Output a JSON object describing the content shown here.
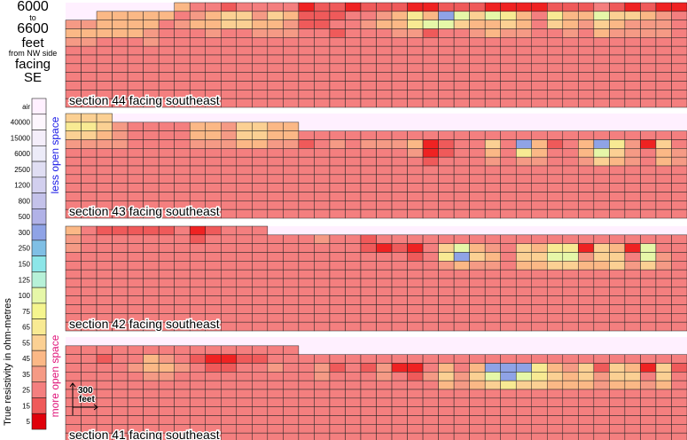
{
  "title": {
    "line1": "6000",
    "line2": "to",
    "line3": "6600",
    "line4": "feet",
    "line5": "from NW side",
    "line6": "facing",
    "line7": "SE"
  },
  "legend": {
    "axis_title": "True resistivity in ohm-metres",
    "less_label": "less open space",
    "more_label": "more open space",
    "entries": [
      {
        "label": "air",
        "color": "#fff0ff"
      },
      {
        "label": "40000",
        "color": "#fdf6fd"
      },
      {
        "label": "15000",
        "color": "#f4eefa"
      },
      {
        "label": "6000",
        "color": "#ecebf8"
      },
      {
        "label": "2500",
        "color": "#e0def3"
      },
      {
        "label": "1200",
        "color": "#d2cfee"
      },
      {
        "label": "800",
        "color": "#c4c2ea"
      },
      {
        "label": "500",
        "color": "#b1b2e7"
      },
      {
        "label": "300",
        "color": "#8fa3e6"
      },
      {
        "label": "250",
        "color": "#7fbfe5"
      },
      {
        "label": "150",
        "color": "#8ce6e8"
      },
      {
        "label": "125",
        "color": "#b7f1d8"
      },
      {
        "label": "100",
        "color": "#e6f7a8"
      },
      {
        "label": "75",
        "color": "#f5f58e"
      },
      {
        "label": "65",
        "color": "#f8ea93"
      },
      {
        "label": "55",
        "color": "#fbd093"
      },
      {
        "label": "45",
        "color": "#fbb886"
      },
      {
        "label": "35",
        "color": "#f59a85"
      },
      {
        "label": "25",
        "color": "#f47f7f"
      },
      {
        "label": "15",
        "color": "#ef5a5a"
      },
      {
        "label": "5",
        "color": "#e0000a"
      }
    ]
  },
  "colors": {
    "background": "#fff0ff",
    "grid_line": "#222222",
    "text": "#000000",
    "less_label": "#1a1ae6",
    "more_label": "#e0147a"
  },
  "scale_bar": {
    "label_top": "300",
    "label_bottom": "feet"
  },
  "chart_data": {
    "type": "heatmap",
    "legend_placement": "left",
    "grid": true,
    "sections": [
      {
        "label": "section 44 facing southeast",
        "surface_depth": [
          2,
          2,
          1,
          1,
          1,
          1,
          1,
          0,
          0,
          0,
          0,
          0,
          0,
          0,
          0,
          0,
          0,
          0,
          0,
          0,
          0,
          0,
          0,
          0,
          0,
          0,
          0,
          0,
          0,
          0,
          0,
          0,
          0,
          0,
          0,
          0,
          0,
          0,
          0,
          0
        ],
        "top_levels": [
          [
            4,
            4,
            5,
            5,
            5,
            5,
            5,
            5,
            3,
            3,
            2,
            3,
            3,
            3,
            3,
            1,
            2,
            2,
            1,
            2,
            2,
            2,
            1,
            1,
            2,
            2,
            2,
            1,
            1,
            1,
            1,
            2,
            2,
            2,
            3,
            2,
            1,
            2,
            1,
            1
          ],
          [
            5,
            5,
            5,
            5,
            5,
            5,
            3,
            3,
            4,
            5,
            6,
            6,
            4,
            6,
            5,
            2,
            2,
            2,
            3,
            3,
            4,
            5,
            7,
            5,
            9,
            8,
            6,
            8,
            7,
            5,
            3,
            7,
            5,
            5,
            8,
            6,
            6,
            5,
            4,
            3
          ],
          [
            4,
            4,
            5,
            5,
            5,
            4,
            3,
            4,
            5,
            5,
            6,
            6,
            5,
            5,
            4,
            2,
            2,
            3,
            3,
            4,
            5,
            5,
            7,
            8,
            8,
            6,
            5,
            5,
            6,
            5,
            3,
            6,
            5,
            4,
            6,
            5,
            4,
            4,
            4,
            3
          ],
          [
            3,
            3,
            3,
            3,
            3,
            4,
            3,
            3,
            3,
            4,
            3,
            3,
            4,
            4,
            4,
            3,
            3,
            2,
            3,
            3,
            3,
            4,
            4,
            2,
            3,
            3,
            4,
            5,
            4,
            4,
            3,
            3,
            4,
            3,
            5,
            4,
            4,
            4,
            4,
            3
          ]
        ]
      },
      {
        "label": "section 43 facing southeast",
        "surface_depth": [
          0,
          0,
          0,
          1,
          1,
          1,
          1,
          1,
          1,
          1,
          1,
          1,
          1,
          1,
          1,
          2,
          2,
          2,
          2,
          2,
          2,
          2,
          2,
          2,
          2,
          2,
          2,
          2,
          2,
          2,
          2,
          2,
          2,
          2,
          2,
          2,
          2,
          2,
          2,
          2
        ],
        "top_levels": [
          [
            6,
            6,
            6,
            4,
            3,
            3,
            3,
            3,
            5,
            5,
            4,
            6,
            6,
            5,
            5,
            3,
            3,
            3,
            3,
            3,
            3,
            3,
            3,
            3,
            3,
            3,
            3,
            3,
            3,
            3,
            3,
            3,
            3,
            3,
            3,
            3,
            3,
            3,
            3,
            3
          ],
          [
            7,
            7,
            6,
            4,
            3,
            3,
            3,
            3,
            5,
            5,
            4,
            6,
            6,
            5,
            5,
            2,
            3,
            4,
            3,
            4,
            4,
            4,
            5,
            1,
            2,
            3,
            3,
            6,
            3,
            9,
            5,
            2,
            3,
            5,
            9,
            7,
            4,
            1,
            6,
            3
          ],
          [
            6,
            6,
            5,
            4,
            3,
            3,
            3,
            3,
            4,
            4,
            4,
            5,
            5,
            4,
            4,
            3,
            3,
            3,
            3,
            3,
            3,
            3,
            4,
            1,
            2,
            3,
            3,
            5,
            3,
            7,
            5,
            3,
            3,
            5,
            8,
            6,
            4,
            3,
            5,
            4
          ],
          [
            4,
            4,
            4,
            3,
            3,
            3,
            3,
            3,
            3,
            3,
            3,
            3,
            3,
            3,
            3,
            3,
            3,
            3,
            3,
            3,
            3,
            3,
            3,
            2,
            3,
            3,
            3,
            4,
            3,
            4,
            4,
            3,
            3,
            4,
            6,
            5,
            4,
            3,
            5,
            4
          ]
        ]
      },
      {
        "label": "section 42 facing southeast",
        "surface_depth": [
          0,
          0,
          0,
          0,
          0,
          0,
          0,
          0,
          0,
          0,
          0,
          0,
          0,
          1,
          1,
          1,
          1,
          1,
          1,
          1,
          1,
          1,
          1,
          1,
          1,
          1,
          1,
          1,
          1,
          1,
          1,
          1,
          1,
          1,
          1,
          1,
          1,
          1,
          1,
          1
        ],
        "top_levels": [
          [
            5,
            3,
            2,
            2,
            2,
            2,
            2,
            3,
            1,
            2,
            3,
            3,
            3,
            3,
            3,
            3,
            4,
            3,
            3,
            2,
            3,
            3,
            3,
            3,
            3,
            3,
            3,
            3,
            3,
            3,
            3,
            3,
            3,
            3,
            3,
            3,
            3,
            3,
            3,
            3
          ],
          [
            4,
            3,
            3,
            3,
            3,
            3,
            3,
            3,
            2,
            3,
            3,
            3,
            3,
            3,
            3,
            3,
            3,
            3,
            3,
            2,
            1,
            2,
            1,
            3,
            6,
            8,
            5,
            4,
            3,
            6,
            5,
            7,
            7,
            1,
            6,
            5,
            1,
            8,
            3,
            3
          ],
          [
            4,
            3,
            3,
            3,
            3,
            3,
            3,
            3,
            3,
            3,
            3,
            3,
            3,
            3,
            3,
            3,
            3,
            3,
            3,
            3,
            3,
            3,
            2,
            3,
            7,
            9,
            6,
            5,
            3,
            6,
            6,
            8,
            8,
            4,
            6,
            6,
            3,
            8,
            4,
            3
          ],
          [
            3,
            3,
            3,
            3,
            3,
            3,
            3,
            3,
            3,
            3,
            3,
            3,
            3,
            3,
            3,
            3,
            3,
            3,
            3,
            3,
            3,
            3,
            3,
            3,
            4,
            5,
            4,
            4,
            3,
            5,
            5,
            6,
            6,
            5,
            5,
            6,
            4,
            6,
            4,
            3
          ]
        ]
      },
      {
        "label": "section 41 facing southeast",
        "surface_depth": [
          1,
          1,
          1,
          1,
          1,
          1,
          1,
          1,
          1,
          1,
          1,
          1,
          1,
          1,
          1,
          2,
          2,
          2,
          2,
          2,
          2,
          2,
          2,
          2,
          2,
          2,
          2,
          2,
          2,
          2,
          2,
          2,
          2,
          2,
          2,
          2,
          2,
          2,
          2,
          2
        ],
        "top_levels": [
          [
            3,
            3,
            3,
            3,
            3,
            3,
            3,
            3,
            3,
            3,
            3,
            3,
            3,
            3,
            3,
            3,
            3,
            3,
            3,
            3,
            3,
            3,
            3,
            3,
            3,
            3,
            3,
            3,
            3,
            3,
            3,
            3,
            3,
            3,
            3,
            3,
            3,
            3,
            3,
            3
          ],
          [
            3,
            3,
            2,
            3,
            3,
            5,
            4,
            3,
            2,
            1,
            1,
            2,
            2,
            3,
            3,
            3,
            4,
            2,
            3,
            2,
            4,
            1,
            1,
            3,
            5,
            3,
            5,
            9,
            9,
            9,
            7,
            5,
            4,
            6,
            2,
            6,
            5,
            1,
            6,
            2
          ],
          [
            3,
            3,
            3,
            3,
            4,
            5,
            5,
            4,
            3,
            2,
            2,
            3,
            3,
            4,
            3,
            3,
            4,
            3,
            3,
            3,
            4,
            3,
            2,
            4,
            6,
            4,
            6,
            8,
            9,
            8,
            7,
            6,
            5,
            6,
            4,
            6,
            6,
            3,
            6,
            3
          ],
          [
            3,
            3,
            3,
            3,
            3,
            4,
            4,
            3,
            3,
            3,
            3,
            3,
            3,
            3,
            3,
            3,
            3,
            3,
            3,
            3,
            3,
            3,
            3,
            3,
            5,
            4,
            5,
            6,
            7,
            6,
            6,
            5,
            5,
            5,
            4,
            5,
            5,
            4,
            5,
            3
          ]
        ]
      }
    ],
    "level_colors": [
      "#e0000a",
      "#ef2222",
      "#ef5a5a",
      "#f47f7f",
      "#f59a85",
      "#fbb886",
      "#fbd093",
      "#f8ea93",
      "#e6f7a8",
      "#8fa3e6"
    ]
  }
}
